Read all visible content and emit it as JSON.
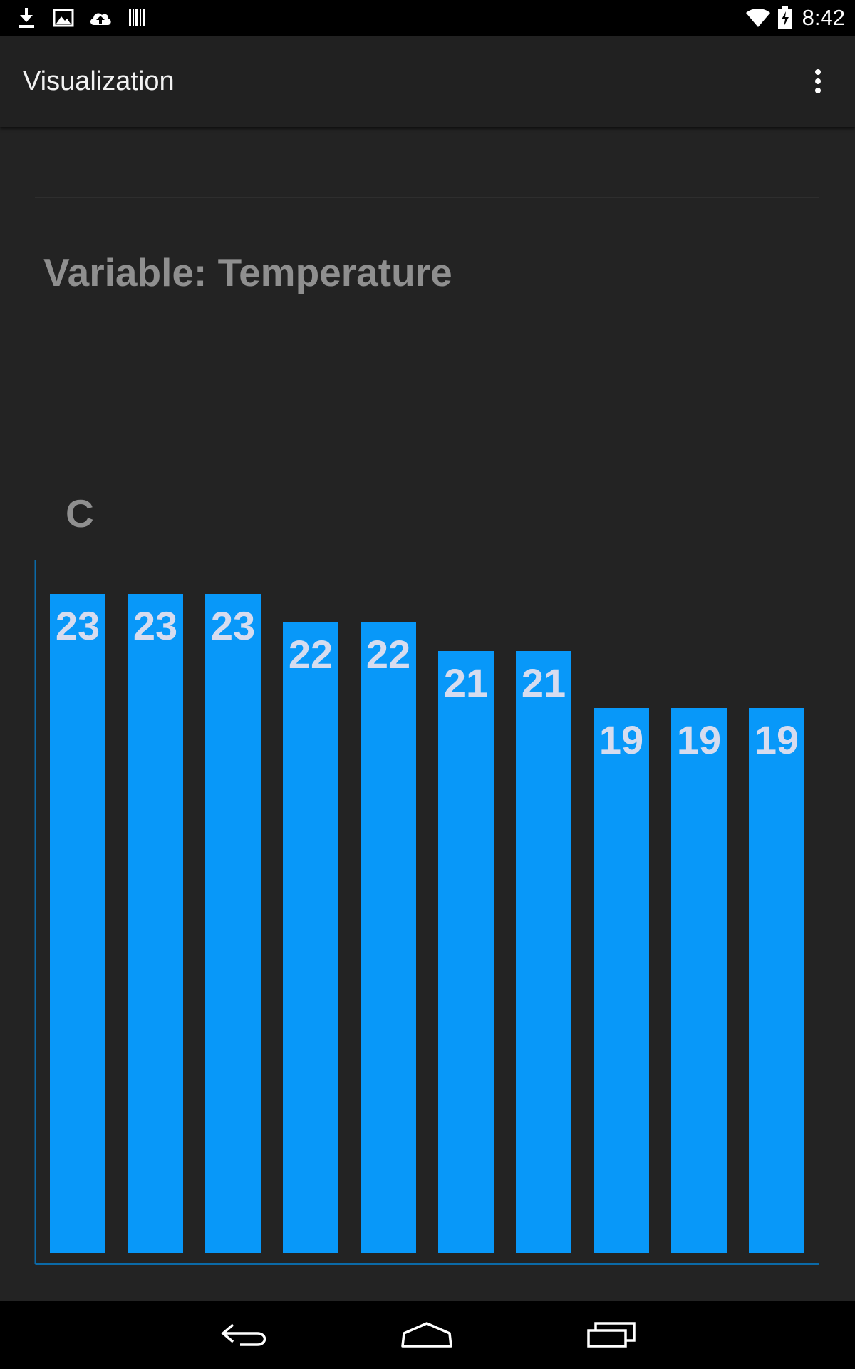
{
  "status_bar": {
    "time": "8:42",
    "icons": [
      "download-icon",
      "image-icon",
      "cloud-upload-icon",
      "barcode-icon",
      "wifi-icon",
      "battery-charging-icon"
    ]
  },
  "action_bar": {
    "title": "Visualization",
    "overflow_icon": "more-vert-icon"
  },
  "variable": {
    "title": "Variable: Temperature"
  },
  "chart_data": {
    "type": "bar",
    "ylabel": "C",
    "values": [
      23,
      23,
      23,
      22,
      22,
      21,
      21,
      19,
      19,
      19
    ],
    "value_labels": [
      "23",
      "23",
      "23",
      "22",
      "22",
      "21",
      "21",
      "19",
      "19",
      "19"
    ],
    "grid": false,
    "legend": "none",
    "color": "#0898f9",
    "axis_color": "#0b6aa8",
    "label_color": "#d6dcef"
  },
  "nav_bar": {
    "icons": [
      "back-icon",
      "home-icon",
      "recent-apps-icon"
    ]
  }
}
